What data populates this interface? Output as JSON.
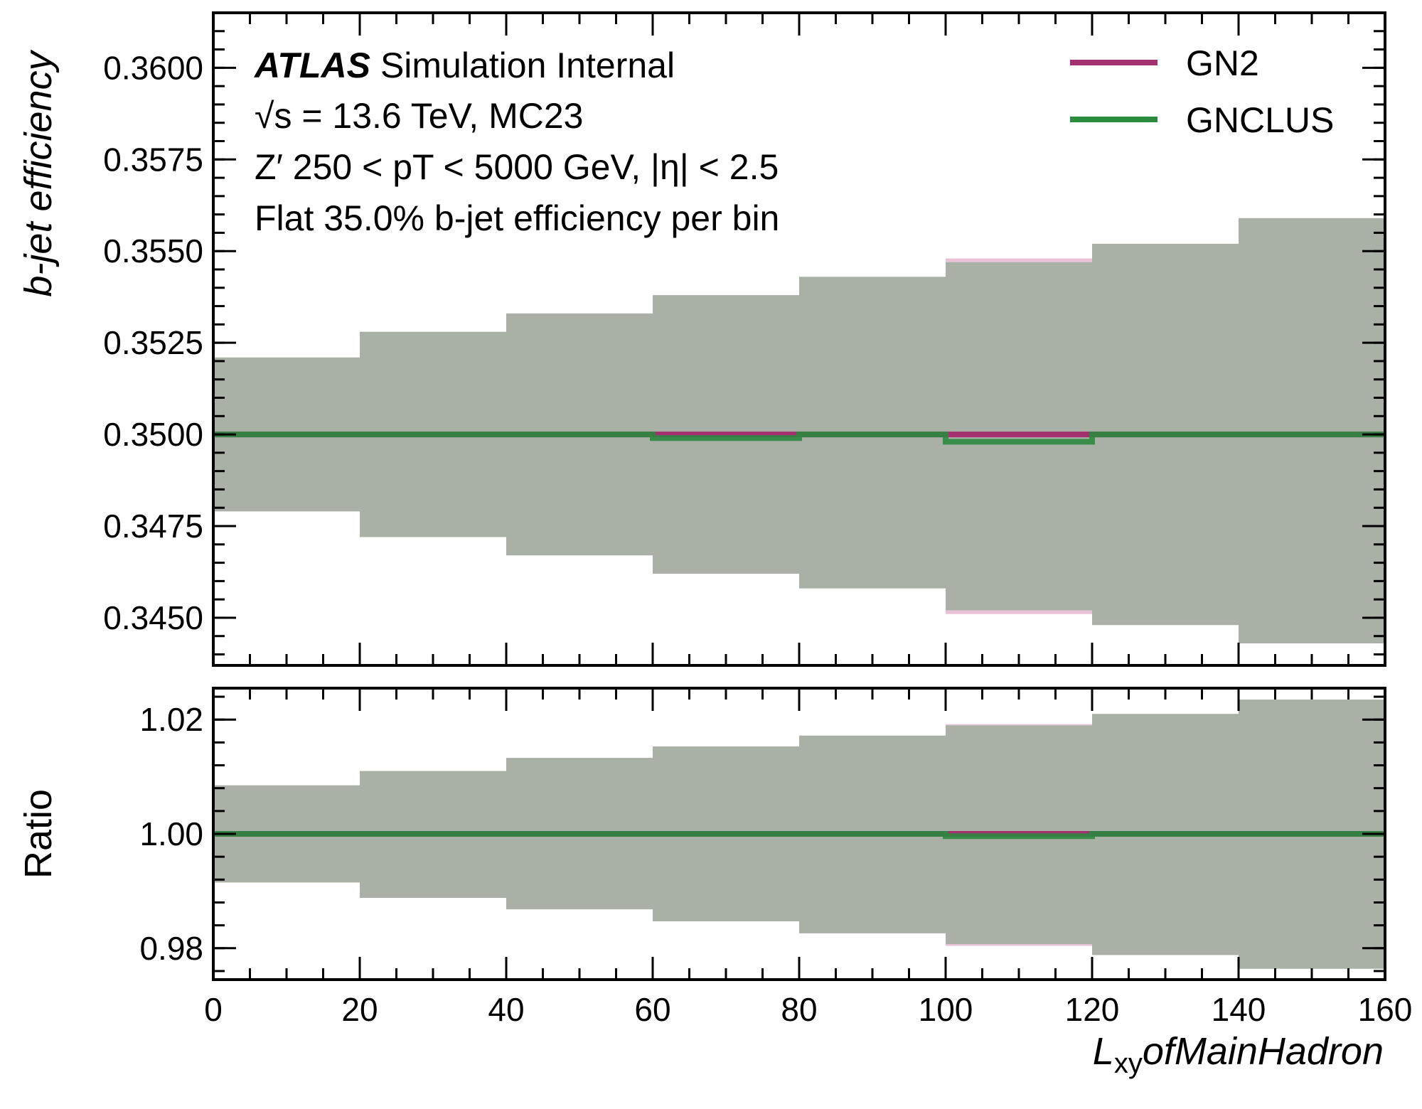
{
  "colors": {
    "gn2": "#a3316f",
    "gnclus": "#2b8a3e",
    "band_overlap": "#a9b0a5",
    "band_gn2": "#e9c2d8",
    "band_gnclus": "#c6e8cc"
  },
  "info": {
    "atlas": "ATLAS",
    "line1_rest": "Simulation Internal",
    "line2": "√s = 13.6 TeV, MC23",
    "line3": "Z′ 250 < pT < 5000 GeV, |η| < 2.5",
    "line4": "Flat 35.0% b-jet efficiency per bin"
  },
  "chart_data": [
    {
      "panel": "top",
      "type": "line",
      "drawstyle": "steps",
      "ylabel": "b-jet efficiency",
      "ylim": [
        0.3437,
        0.3615
      ],
      "yticks": [
        "0.3450",
        "0.3475",
        "0.3500",
        "0.3525",
        "0.3550",
        "0.3575",
        "0.3600"
      ],
      "ytick_values": [
        0.345,
        0.3475,
        0.35,
        0.3525,
        0.355,
        0.3575,
        0.36
      ],
      "xlim": [
        0,
        160
      ],
      "bin_edges": [
        0,
        20,
        40,
        60,
        80,
        100,
        120,
        140,
        160
      ],
      "legend": "upper right",
      "series": [
        {
          "name": "GN2",
          "values": [
            0.35,
            0.35,
            0.35,
            0.35,
            0.35,
            0.35,
            0.35,
            0.35
          ],
          "band_low": [
            0.3479,
            0.3472,
            0.3467,
            0.3462,
            0.3458,
            0.3451,
            0.3448,
            0.3443
          ],
          "band_high": [
            0.3521,
            0.3528,
            0.3533,
            0.3538,
            0.3543,
            0.3548,
            0.3552,
            0.3559
          ]
        },
        {
          "name": "GNCLUS",
          "values": [
            0.35,
            0.35,
            0.35,
            0.3499,
            0.35,
            0.3498,
            0.35,
            0.35
          ],
          "band_low": [
            0.3479,
            0.3472,
            0.3467,
            0.3462,
            0.3458,
            0.3452,
            0.3448,
            0.3443
          ],
          "band_high": [
            0.3521,
            0.3528,
            0.3533,
            0.3538,
            0.3543,
            0.3547,
            0.3552,
            0.3559
          ]
        }
      ]
    },
    {
      "panel": "bottom",
      "type": "line",
      "drawstyle": "steps",
      "ylabel": "Ratio",
      "xlabel": "L_xy of Main Hadron",
      "xlabel_main": "L",
      "xlabel_sub": "xy",
      "xlabel_rest": "ofMainHadron",
      "ylim": [
        0.9745,
        1.0255
      ],
      "yticks": [
        "0.98",
        "1.00",
        "1.02"
      ],
      "ytick_values": [
        0.98,
        1.0,
        1.02
      ],
      "xlim": [
        0,
        160
      ],
      "xticks": [
        "0",
        "20",
        "40",
        "60",
        "80",
        "100",
        "120",
        "140",
        "160"
      ],
      "xtick_values": [
        0,
        20,
        40,
        60,
        80,
        100,
        120,
        140,
        160
      ],
      "bin_edges": [
        0,
        20,
        40,
        60,
        80,
        100,
        120,
        140,
        160
      ],
      "series": [
        {
          "name": "GN2",
          "values": [
            1.0,
            1.0,
            1.0,
            1.0,
            1.0,
            1.0,
            1.0,
            1.0
          ],
          "band_low": [
            0.9915,
            0.9888,
            0.9868,
            0.9847,
            0.9826,
            0.9804,
            0.9788,
            0.9764
          ],
          "band_high": [
            1.0085,
            1.011,
            1.0133,
            1.0153,
            1.0172,
            1.0192,
            1.021,
            1.0235
          ]
        },
        {
          "name": "GNCLUS",
          "values": [
            1.0,
            1.0,
            1.0,
            1.0,
            1.0,
            0.9996,
            1.0,
            1.0
          ],
          "band_low": [
            0.9915,
            0.9888,
            0.9868,
            0.9847,
            0.9826,
            0.9807,
            0.9788,
            0.9764
          ],
          "band_high": [
            1.0085,
            1.011,
            1.0133,
            1.0153,
            1.0172,
            1.019,
            1.021,
            1.0235
          ]
        }
      ]
    }
  ]
}
